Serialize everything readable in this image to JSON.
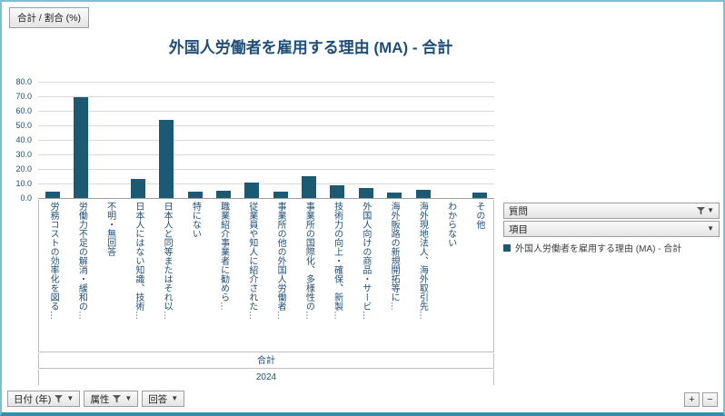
{
  "toolbar_top": {
    "measure_button": "合計 / 割合 (%)"
  },
  "chart_data": {
    "type": "bar",
    "title": "外国人労働者を雇用する理由 (MA) - 合計",
    "categories": [
      "労務コストの効率化を図る…",
      "労働力不足の解消・緩和の…",
      "不明・無回答",
      "日本人にはない知識、技術…",
      "日本人と同等またはそれ以…",
      "特にない",
      "職業紹介事業者に勧めら…",
      "従業員や知人に紹介された…",
      "事業所の他の外国人労働者…",
      "事業所の国際化、多様性の…",
      "技術力の向上・確保、新製…",
      "外国人向けの商品・サービ…",
      "海外販路の新規開拓等に…",
      "海外現地法人、海外取引先…",
      "わからない",
      "その他"
    ],
    "values": [
      4.6,
      69.3,
      0,
      12.9,
      54.0,
      4.6,
      4.8,
      10.9,
      4.6,
      15.2,
      8.7,
      6.9,
      3.9,
      5.6,
      0,
      3.9
    ],
    "ylim": [
      0,
      80
    ],
    "ytick_labels": [
      "0.0",
      "10.0",
      "20.0",
      "30.0",
      "40.0",
      "50.0",
      "60.0",
      "70.0",
      "80.0"
    ],
    "x_group_label": "合計",
    "x_year_label": "2024",
    "legend": "外国人労働者を雇用する理由 (MA) - 合計",
    "bar_color": "#1C5A74",
    "grid": true,
    "legend_position": "right"
  },
  "right_fields": {
    "question_label": "質問",
    "item_label": "項目"
  },
  "bottom_fields": {
    "date_label": "日付 (年)",
    "attribute_label": "属性",
    "answer_label": "回答"
  },
  "zoom": {
    "plus": "+",
    "minus": "−"
  }
}
